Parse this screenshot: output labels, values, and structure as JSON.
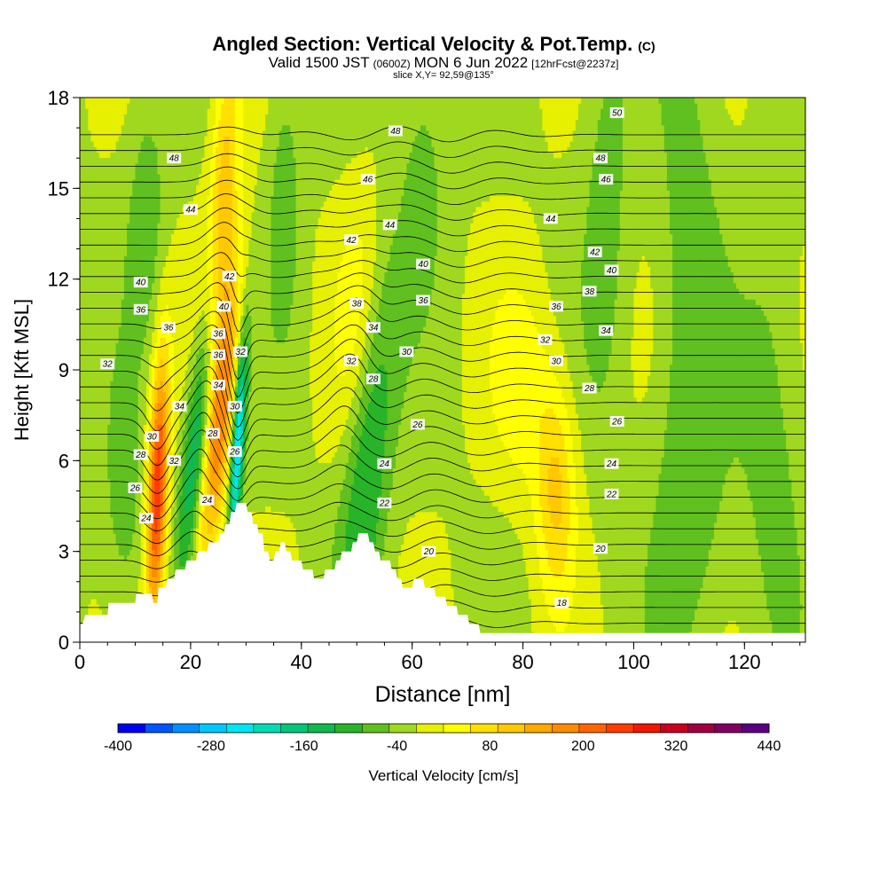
{
  "title": {
    "main": "Angled Section: Vertical Velocity & Pot.Temp.",
    "main_unit": "(C)",
    "line2_a": "Valid 1500 JST",
    "line2_b": "(0600Z)",
    "line2_c": "MON 6 Jun 2022",
    "line2_d": "[12hrFcst@2237z]",
    "line3": "slice X,Y= 92,59@135°"
  },
  "chart_data": {
    "type": "heatmap",
    "xlabel": "Distance [nm]",
    "ylabel": "Height [Kft MSL]",
    "xlim": [
      0,
      131
    ],
    "ylim": [
      0,
      18
    ],
    "x_ticks": [
      0,
      20,
      40,
      60,
      80,
      100,
      120
    ],
    "y_ticks": [
      0,
      3,
      6,
      9,
      12,
      15,
      18
    ],
    "grid": false,
    "colorbar": {
      "label": "Vertical Velocity [cm/s]",
      "tick_labels": [
        "-400",
        "-280",
        "-160",
        "-40",
        "80",
        "200",
        "320",
        "440"
      ],
      "min": -400,
      "max": 440,
      "step": 40,
      "colors": [
        "#0000f0",
        "#0055ff",
        "#0090ff",
        "#00c8ff",
        "#00e6f0",
        "#00dcb4",
        "#00c878",
        "#10b850",
        "#28b428",
        "#60c020",
        "#a0d820",
        "#e6f000",
        "#ffff00",
        "#ffe000",
        "#ffc800",
        "#ffa800",
        "#ff8c00",
        "#ff6400",
        "#ff3c00",
        "#f01800",
        "#c80020",
        "#a00040",
        "#800060",
        "#5a0080"
      ]
    },
    "terrain_profile": {
      "distance_nm": [
        0,
        0.5,
        1,
        5,
        5.2,
        10,
        10.2,
        13,
        13.3,
        14,
        14.2,
        15.5,
        15.8,
        17,
        17.3,
        19,
        19.3,
        21,
        21.3,
        23,
        23.3,
        25,
        25.3,
        26,
        26.3,
        27,
        27.3,
        28,
        28.3,
        30,
        30.3,
        31,
        31.3,
        32,
        32.3,
        33,
        33.3,
        34,
        34.3,
        35,
        35.3,
        36,
        36.3,
        37,
        37.3,
        38,
        38.3,
        40,
        40.3,
        42,
        42.3,
        44,
        44.3,
        46,
        46.3,
        47,
        47.3,
        49,
        49.3,
        50,
        50.3,
        52,
        52.3,
        53,
        53.3,
        54,
        54.3,
        56,
        56.3,
        57,
        57.3,
        58,
        58.3,
        60,
        60.3,
        62,
        62.3,
        64,
        64.3,
        66,
        66.3,
        68,
        68.3,
        70,
        70.3,
        72,
        72.3,
        131
      ],
      "height_kft": [
        0.6,
        0.6,
        0.9,
        0.9,
        1.3,
        1.3,
        1.6,
        1.6,
        1.3,
        1.3,
        1.8,
        1.8,
        2.1,
        2.1,
        2.4,
        2.4,
        2.7,
        2.7,
        3.0,
        3.0,
        3.3,
        3.3,
        3.6,
        3.6,
        3.9,
        3.9,
        4.3,
        4.3,
        4.6,
        4.6,
        4.3,
        4.3,
        3.9,
        3.9,
        3.6,
        3.6,
        3.0,
        3.0,
        2.7,
        2.7,
        3.0,
        3.0,
        3.3,
        3.3,
        3.0,
        3.0,
        2.7,
        2.7,
        2.4,
        2.4,
        2.1,
        2.1,
        2.4,
        2.4,
        2.7,
        2.7,
        3.0,
        3.0,
        3.3,
        3.3,
        3.6,
        3.6,
        3.3,
        3.3,
        3.0,
        3.0,
        2.7,
        2.7,
        2.4,
        2.4,
        2.1,
        2.1,
        1.8,
        1.8,
        2.1,
        2.1,
        1.8,
        1.8,
        1.5,
        1.5,
        1.2,
        1.2,
        0.9,
        0.9,
        0.6,
        0.6,
        0.3,
        0.3
      ]
    },
    "velocity_features": [
      {
        "x_nm": 14,
        "z_kft": 5.0,
        "w_cm_s": 320,
        "sx": 1.3,
        "sz": 3.2,
        "tilt": 0.18
      },
      {
        "x_nm": 25,
        "z_kft": 7.0,
        "w_cm_s": 220,
        "sx": 1.8,
        "sz": 3.5,
        "tilt": 0.55
      },
      {
        "x_nm": 26,
        "z_kft": 14.5,
        "w_cm_s": 150,
        "sx": 1.8,
        "sz": 4.0,
        "tilt": 0.2
      },
      {
        "x_nm": 21,
        "z_kft": 6.5,
        "w_cm_s": -170,
        "sx": 1.6,
        "sz": 3.0,
        "tilt": 0.55
      },
      {
        "x_nm": 28.5,
        "z_kft": 6.5,
        "w_cm_s": -300,
        "sx": 0.8,
        "sz": 2.5,
        "tilt": 0.3
      },
      {
        "x_nm": 52,
        "z_kft": 6.0,
        "w_cm_s": -120,
        "sx": 3.0,
        "sz": 4.5,
        "tilt": 0.45
      },
      {
        "x_nm": 86,
        "z_kft": 5.0,
        "w_cm_s": 130,
        "sx": 2.5,
        "sz": 2.5,
        "tilt": 0.0
      },
      {
        "x_nm": 80,
        "z_kft": 8.5,
        "w_cm_s": 70,
        "sx": 4.0,
        "sz": 2.5,
        "tilt": 0.0
      },
      {
        "x_nm": 50,
        "z_kft": 11.0,
        "w_cm_s": 60,
        "sx": 3.0,
        "sz": 3.0,
        "tilt": 0.3
      },
      {
        "x_nm": 12,
        "z_kft": 14.0,
        "w_cm_s": -60,
        "sx": 2.5,
        "sz": 3.0,
        "tilt": 0.0
      },
      {
        "x_nm": 37,
        "z_kft": 15.0,
        "w_cm_s": -60,
        "sx": 2.0,
        "sz": 3.0,
        "tilt": 0.0
      },
      {
        "x_nm": 62,
        "z_kft": 16.0,
        "w_cm_s": -50,
        "sx": 3.0,
        "sz": 3.0,
        "tilt": 0.0
      },
      {
        "x_nm": 95,
        "z_kft": 14.0,
        "w_cm_s": -55,
        "sx": 3.0,
        "sz": 5.0,
        "tilt": 0.0
      },
      {
        "x_nm": 110,
        "z_kft": 14.0,
        "w_cm_s": -55,
        "sx": 4.0,
        "sz": 6.0,
        "tilt": 0.0
      },
      {
        "x_nm": 110,
        "z_kft": 4.0,
        "w_cm_s": -55,
        "sx": 5.0,
        "sz": 4.0,
        "tilt": 0.0
      },
      {
        "x_nm": 125,
        "z_kft": 7.0,
        "w_cm_s": -55,
        "sx": 4.0,
        "sz": 5.0,
        "tilt": 0.0
      },
      {
        "x_nm": 8,
        "z_kft": 4.0,
        "w_cm_s": -55,
        "sx": 3.0,
        "sz": 3.0,
        "tilt": 0.0
      }
    ],
    "theta_contours": {
      "levels_c": [
        18,
        19,
        20,
        21,
        22,
        23,
        24,
        25,
        26,
        27,
        28,
        29,
        30,
        31,
        32,
        33,
        34,
        35,
        36,
        37,
        38,
        39,
        40,
        41,
        42,
        43,
        44,
        45,
        46,
        47,
        48,
        49,
        50
      ],
      "labels": [
        {
          "text": "50",
          "x_nm": 97,
          "z_kft": 17.5
        },
        {
          "text": "48",
          "x_nm": 57,
          "z_kft": 16.9
        },
        {
          "text": "48",
          "x_nm": 94,
          "z_kft": 16.0
        },
        {
          "text": "48",
          "x_nm": 17,
          "z_kft": 16.0
        },
        {
          "text": "46",
          "x_nm": 52,
          "z_kft": 15.3
        },
        {
          "text": "46",
          "x_nm": 95,
          "z_kft": 15.3
        },
        {
          "text": "44",
          "x_nm": 20,
          "z_kft": 14.3
        },
        {
          "text": "44",
          "x_nm": 56,
          "z_kft": 13.8
        },
        {
          "text": "44",
          "x_nm": 85,
          "z_kft": 14.0
        },
        {
          "text": "42",
          "x_nm": 49,
          "z_kft": 13.3
        },
        {
          "text": "42",
          "x_nm": 93,
          "z_kft": 12.9
        },
        {
          "text": "42",
          "x_nm": 27,
          "z_kft": 12.1
        },
        {
          "text": "40",
          "x_nm": 62,
          "z_kft": 12.5
        },
        {
          "text": "40",
          "x_nm": 96,
          "z_kft": 12.3
        },
        {
          "text": "40",
          "x_nm": 11,
          "z_kft": 11.9
        },
        {
          "text": "40",
          "x_nm": 26,
          "z_kft": 11.1
        },
        {
          "text": "38",
          "x_nm": 92,
          "z_kft": 11.6
        },
        {
          "text": "38",
          "x_nm": 50,
          "z_kft": 11.2
        },
        {
          "text": "36",
          "x_nm": 62,
          "z_kft": 11.3
        },
        {
          "text": "36",
          "x_nm": 86,
          "z_kft": 11.1
        },
        {
          "text": "36",
          "x_nm": 11,
          "z_kft": 11.0
        },
        {
          "text": "36",
          "x_nm": 16,
          "z_kft": 10.4
        },
        {
          "text": "36",
          "x_nm": 25,
          "z_kft": 10.2
        },
        {
          "text": "36",
          "x_nm": 25,
          "z_kft": 9.5
        },
        {
          "text": "34",
          "x_nm": 53,
          "z_kft": 10.4
        },
        {
          "text": "34",
          "x_nm": 95,
          "z_kft": 10.3
        },
        {
          "text": "34",
          "x_nm": 25,
          "z_kft": 8.5
        },
        {
          "text": "34",
          "x_nm": 18,
          "z_kft": 7.8
        },
        {
          "text": "32",
          "x_nm": 84,
          "z_kft": 10.0
        },
        {
          "text": "32",
          "x_nm": 29,
          "z_kft": 9.6
        },
        {
          "text": "32",
          "x_nm": 49,
          "z_kft": 9.3
        },
        {
          "text": "32",
          "x_nm": 5,
          "z_kft": 9.2
        },
        {
          "text": "32",
          "x_nm": 17,
          "z_kft": 6.0
        },
        {
          "text": "30",
          "x_nm": 59,
          "z_kft": 9.6
        },
        {
          "text": "30",
          "x_nm": 86,
          "z_kft": 9.3
        },
        {
          "text": "30",
          "x_nm": 28,
          "z_kft": 7.8
        },
        {
          "text": "30",
          "x_nm": 13,
          "z_kft": 6.8
        },
        {
          "text": "28",
          "x_nm": 53,
          "z_kft": 8.7
        },
        {
          "text": "28",
          "x_nm": 92,
          "z_kft": 8.4
        },
        {
          "text": "28",
          "x_nm": 24,
          "z_kft": 6.9
        },
        {
          "text": "28",
          "x_nm": 11,
          "z_kft": 6.2
        },
        {
          "text": "26",
          "x_nm": 61,
          "z_kft": 7.2
        },
        {
          "text": "26",
          "x_nm": 97,
          "z_kft": 7.3
        },
        {
          "text": "26",
          "x_nm": 28,
          "z_kft": 6.3
        },
        {
          "text": "26",
          "x_nm": 10,
          "z_kft": 5.1
        },
        {
          "text": "24",
          "x_nm": 55,
          "z_kft": 5.9
        },
        {
          "text": "24",
          "x_nm": 96,
          "z_kft": 5.9
        },
        {
          "text": "24",
          "x_nm": 12,
          "z_kft": 4.1
        },
        {
          "text": "24",
          "x_nm": 23,
          "z_kft": 4.7
        },
        {
          "text": "22",
          "x_nm": 55,
          "z_kft": 4.6
        },
        {
          "text": "22",
          "x_nm": 96,
          "z_kft": 4.9
        },
        {
          "text": "20",
          "x_nm": 63,
          "z_kft": 3.0
        },
        {
          "text": "20",
          "x_nm": 94,
          "z_kft": 3.1
        },
        {
          "text": "18",
          "x_nm": 87,
          "z_kft": 1.3
        }
      ]
    }
  }
}
